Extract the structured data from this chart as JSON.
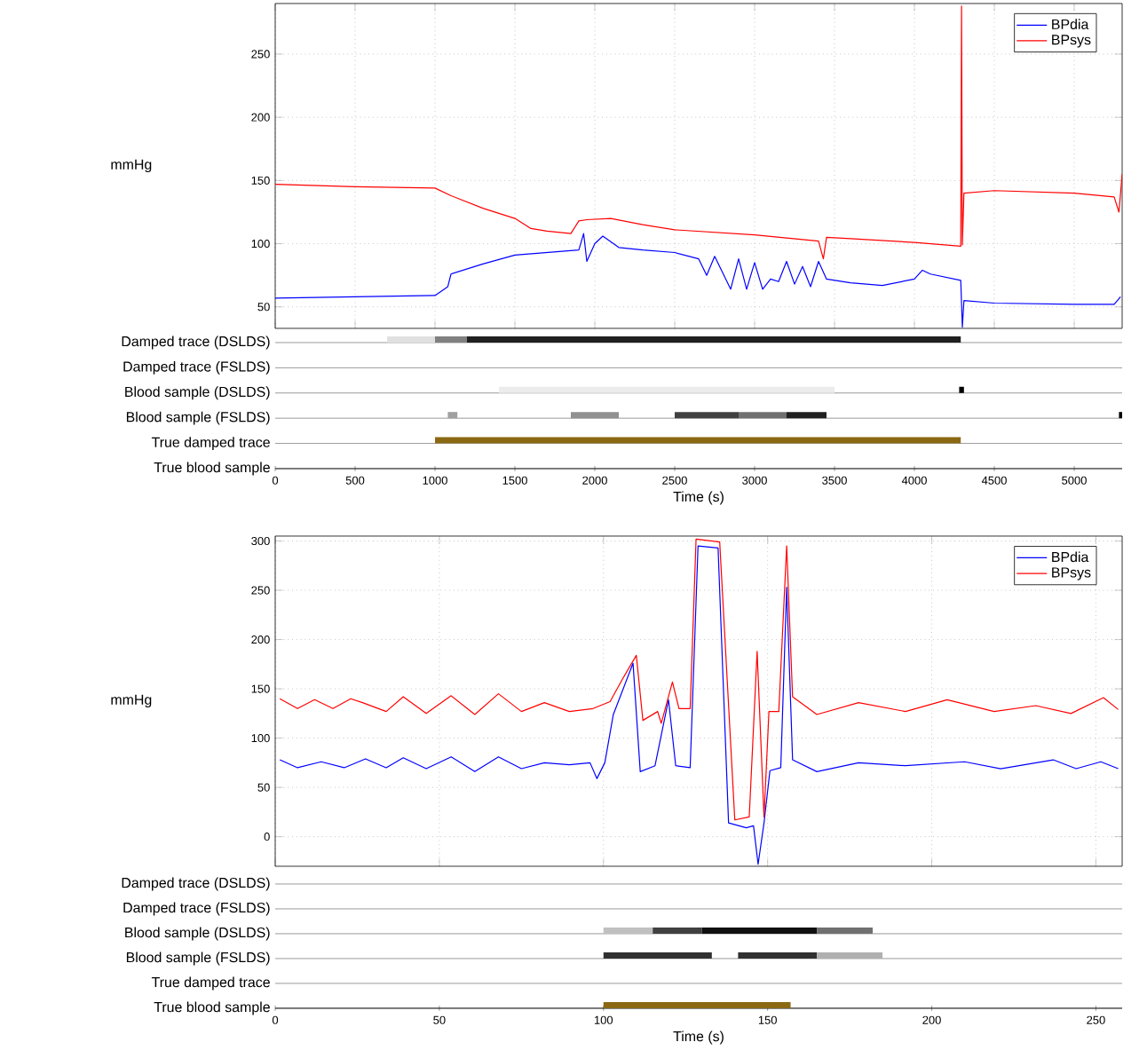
{
  "chart_data": [
    {
      "type": "line",
      "ylabel": "mmHg",
      "xlim": [
        0,
        5300
      ],
      "ylim": [
        33,
        290
      ],
      "xticks": [
        0,
        500,
        1000,
        1500,
        2000,
        2500,
        3000,
        3500,
        4000,
        4500,
        5000
      ],
      "yticks": [
        50,
        100,
        150,
        200,
        250
      ],
      "grid": true,
      "legend": "top right",
      "tick_labels": "y",
      "series": [
        {
          "name": "BPdia",
          "color": "#0000ff",
          "x": [
            0,
            500,
            1000,
            1080,
            1100,
            1300,
            1500,
            1700,
            1900,
            1930,
            1950,
            2000,
            2050,
            2150,
            2300,
            2500,
            2650,
            2700,
            2750,
            2850,
            2900,
            2950,
            3000,
            3050,
            3100,
            3150,
            3200,
            3250,
            3300,
            3350,
            3400,
            3450,
            3600,
            3800,
            4000,
            4050,
            4100,
            4290,
            4300,
            4310,
            4500,
            5000,
            5250,
            5290
          ],
          "values": [
            57,
            58,
            59,
            66,
            76,
            84,
            91,
            93,
            95,
            108,
            86,
            100,
            106,
            97,
            95,
            93,
            88,
            75,
            90,
            64,
            88,
            64,
            85,
            64,
            72,
            70,
            86,
            68,
            82,
            66,
            86,
            72,
            69,
            67,
            72,
            79,
            76,
            71,
            34,
            55,
            53,
            52,
            52,
            58
          ]
        },
        {
          "name": "BPsys",
          "color": "#ff0000",
          "x": [
            0,
            500,
            1000,
            1100,
            1300,
            1500,
            1600,
            1700,
            1850,
            1900,
            1950,
            2100,
            2300,
            2500,
            3000,
            3400,
            3430,
            3450,
            3600,
            4000,
            4290,
            4295,
            4300,
            4310,
            4500,
            5000,
            5250,
            5280,
            5300
          ],
          "values": [
            147,
            145,
            144,
            138,
            128,
            120,
            112,
            110,
            108,
            118,
            119,
            120,
            115,
            111,
            107,
            102,
            88,
            105,
            104,
            101,
            98,
            288,
            99,
            140,
            142,
            140,
            137,
            125,
            155
          ]
        }
      ]
    },
    {
      "type": "bar",
      "orientation": "horizontal",
      "xlabel": "Time (s)",
      "xlim": [
        0,
        5300
      ],
      "xticks": [
        0,
        500,
        1000,
        1500,
        2000,
        2500,
        3000,
        3500,
        4000,
        4500,
        5000
      ],
      "grid": "y",
      "categories": [
        "Damped trace (DSLDS)",
        "Damped trace (FSLDS)",
        "Blood sample  (DSLDS)",
        "Blood sample  (FSLDS)",
        "True damped trace",
        "True blood sample"
      ],
      "series": [
        {
          "base": [
            700,
            null,
            1400,
            1080,
            1000,
            null
          ],
          "values": [
            300,
            null,
            2100,
            60,
            3290,
            null
          ],
          "colors": [
            "#e0e0e0",
            null,
            "#ececec",
            "#a0a0a0",
            "#8b6914",
            null
          ]
        },
        {
          "base": [
            1000,
            null,
            4280,
            1850,
            null,
            null
          ],
          "values": [
            200,
            null,
            30,
            300,
            null,
            null
          ],
          "colors": [
            "#808080",
            null,
            "#000000",
            "#909090",
            null,
            null
          ]
        },
        {
          "base": [
            1200,
            null,
            null,
            2500,
            null,
            null
          ],
          "values": [
            3090,
            null,
            null,
            400,
            null,
            null
          ],
          "colors": [
            "#202020",
            null,
            null,
            "#404040",
            null,
            null
          ]
        },
        {
          "base": [
            null,
            null,
            null,
            2900,
            null,
            null
          ],
          "values": [
            null,
            null,
            null,
            300,
            null,
            null
          ],
          "colors": [
            null,
            null,
            null,
            "#707070",
            null,
            null
          ]
        },
        {
          "base": [
            null,
            null,
            null,
            3200,
            null,
            null
          ],
          "values": [
            null,
            null,
            null,
            250,
            null,
            null
          ],
          "colors": [
            null,
            null,
            null,
            "#202020",
            null,
            null
          ]
        },
        {
          "base": [
            null,
            null,
            null,
            5280,
            null,
            null
          ],
          "values": [
            null,
            null,
            null,
            20,
            null,
            null
          ],
          "colors": [
            null,
            null,
            null,
            "#000000",
            null,
            null
          ]
        }
      ]
    },
    {
      "type": "line",
      "ylabel": "mmHg",
      "xlim": [
        0,
        258
      ],
      "ylim": [
        -30,
        305
      ],
      "xticks": [
        0,
        50,
        100,
        150,
        200,
        250
      ],
      "yticks": [
        0,
        50,
        100,
        150,
        200,
        250,
        300
      ],
      "grid": true,
      "legend": "top right",
      "tick_labels": "y",
      "series": [
        {
          "name": "BPdia",
          "color": "#0000ff",
          "x": [
            1.4,
            6.8,
            14,
            21,
            27.5,
            33.8,
            39,
            46,
            53.6,
            60.8,
            68,
            75,
            82,
            89.6,
            95.9,
            98,
            100.4,
            103,
            109,
            111.2,
            115.7,
            119.8,
            122,
            126.4,
            128.8,
            134.9,
            138.1,
            143.5,
            145.7,
            147.1,
            148.9,
            150.7,
            154,
            155.8,
            157.6,
            165,
            177.7,
            192,
            210,
            221,
            237,
            244,
            251.5,
            256.8
          ],
          "values": [
            78,
            70,
            76,
            70,
            79,
            70,
            80,
            69,
            81,
            66,
            81,
            69,
            75,
            73,
            75,
            59,
            75,
            124,
            176,
            66,
            72,
            139,
            72,
            70,
            295,
            293,
            14,
            9,
            11,
            -28,
            14,
            67,
            70,
            253,
            78,
            66,
            75,
            72,
            76,
            69,
            78,
            69,
            76,
            69
          ]
        },
        {
          "name": "BPsys",
          "color": "#ff0000",
          "x": [
            1.4,
            6.8,
            12,
            17.6,
            23,
            26.6,
            33.8,
            39,
            46,
            53.6,
            60.8,
            68,
            75,
            82,
            89.6,
            96.8,
            102,
            105.8,
            110,
            112,
            116.5,
            117.6,
            121,
            123,
            126.4,
            128.2,
            135.4,
            140,
            144.4,
            146.8,
            148.9,
            150.4,
            153.4,
            155.8,
            157.6,
            165,
            177.7,
            192,
            204.7,
            219,
            231.7,
            242.4,
            252.3,
            256.8
          ],
          "values": [
            140,
            130,
            139,
            130,
            140,
            136,
            127,
            142,
            125,
            143,
            124,
            145,
            127,
            136,
            127,
            130,
            137,
            160,
            184,
            118,
            127,
            115,
            157,
            130,
            130,
            302,
            299,
            17,
            20,
            188,
            20,
            127,
            127,
            295,
            142,
            124,
            136,
            127,
            139,
            127,
            133,
            125,
            141,
            129
          ]
        }
      ]
    },
    {
      "type": "bar",
      "orientation": "horizontal",
      "xlabel": "Time (s)",
      "xlim": [
        0,
        258
      ],
      "xticks": [
        0,
        50,
        100,
        150,
        200,
        250
      ],
      "grid": "y",
      "categories": [
        "Damped trace (DSLDS)",
        "Damped trace (FSLDS)",
        "Blood sample  (DSLDS)",
        "Blood sample  (FSLDS)",
        "True damped trace",
        "True blood sample"
      ],
      "series": [
        {
          "base": [
            null,
            null,
            100,
            100,
            null,
            100
          ],
          "values": [
            null,
            null,
            15,
            33,
            null,
            57
          ],
          "colors": [
            null,
            null,
            "#c0c0c0",
            "#303030",
            null,
            "#8b6914"
          ]
        },
        {
          "base": [
            null,
            null,
            115,
            141,
            null,
            null
          ],
          "values": [
            null,
            null,
            15,
            24,
            null,
            null
          ],
          "colors": [
            null,
            null,
            "#404040",
            "#303030",
            null,
            null
          ]
        },
        {
          "base": [
            null,
            null,
            130,
            165,
            null,
            null
          ],
          "values": [
            null,
            null,
            35,
            20,
            null,
            null
          ],
          "colors": [
            null,
            null,
            "#101010",
            "#b0b0b0",
            null,
            null
          ]
        },
        {
          "base": [
            null,
            null,
            165,
            null,
            null,
            null
          ],
          "values": [
            null,
            null,
            17,
            null,
            null,
            null
          ],
          "colors": [
            null,
            null,
            "#707070",
            null,
            null,
            null
          ]
        }
      ]
    }
  ]
}
